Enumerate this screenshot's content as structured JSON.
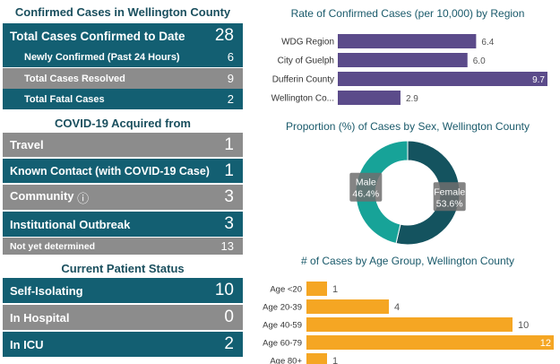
{
  "confirmed": {
    "title": "Confirmed Cases in Wellington County",
    "total_label": "Total Cases Confirmed to Date",
    "total_value": "28",
    "new_label": "Newly Confirmed (Past 24 Hours)",
    "new_value": "6",
    "resolved_label": "Total Cases Resolved",
    "resolved_value": "9",
    "fatal_label": "Total Fatal Cases",
    "fatal_value": "2"
  },
  "acquired": {
    "title": "COVID-19 Acquired from",
    "items": [
      {
        "label": "Travel",
        "value": "1"
      },
      {
        "label": "Known Contact (with COVID-19 Case)",
        "value": "1"
      },
      {
        "label": "Community",
        "value": "3"
      },
      {
        "label": "Institutional Outbreak",
        "value": "3"
      },
      {
        "label": "Not yet determined",
        "value": "13"
      }
    ],
    "info_icon": "ⓘ"
  },
  "status": {
    "title": "Current Patient Status",
    "items": [
      {
        "label": "Self-Isolating",
        "value": "10"
      },
      {
        "label": "In Hospital",
        "value": "0"
      },
      {
        "label": "In ICU",
        "value": "2"
      }
    ]
  },
  "colors": {
    "teal": "#135f72",
    "gray": "#8c8c8c",
    "purple": "#5b4b8a",
    "orange": "#f5a623",
    "donut_dark": "#14535f",
    "donut_light": "#17a398"
  },
  "chart_data": [
    {
      "type": "bar",
      "orientation": "horizontal",
      "title": "Rate of Confirmed Cases (per 10,000) by Region",
      "categories": [
        "WDG Region",
        "City of Guelph",
        "Dufferin County",
        "Wellington Co..."
      ],
      "values": [
        6.4,
        6.0,
        9.7,
        2.9
      ],
      "labels": [
        "6.4",
        "6.0",
        "9.7",
        "2.9"
      ],
      "xlim": [
        0,
        9.7
      ]
    },
    {
      "type": "pie",
      "donut": true,
      "title": "Proportion (%) of Cases by Sex, Wellington County",
      "slices": [
        {
          "name": "Male",
          "value": 46.4,
          "label": "46.4%"
        },
        {
          "name": "Female",
          "value": 53.6,
          "label": "53.6%"
        }
      ]
    },
    {
      "type": "bar",
      "orientation": "horizontal",
      "title": "# of Cases by Age Group, Wellington County",
      "categories": [
        "Age <20",
        "Age 20-39",
        "Age 40-59",
        "Age 60-79",
        "Age 80+"
      ],
      "values": [
        1,
        4,
        10,
        12,
        1
      ],
      "labels": [
        "1",
        "4",
        "10",
        "12",
        "1"
      ],
      "xlim": [
        0,
        12
      ]
    }
  ]
}
